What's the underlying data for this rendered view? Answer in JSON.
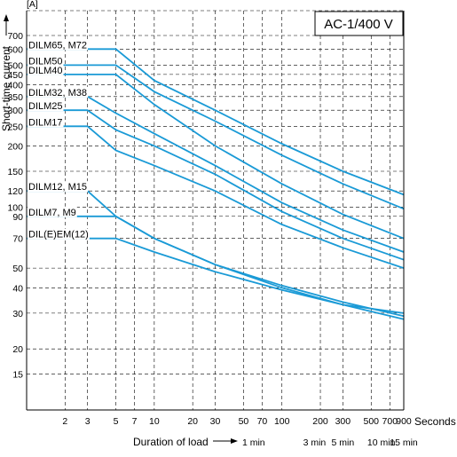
{
  "chart_data": {
    "type": "line",
    "title": "AC-1/400 V",
    "ylabel": "Short-time current",
    "yunit": "[A]",
    "xlabel": "Duration of load",
    "xunit": "Seconds",
    "x_scale": "log",
    "y_scale": "log",
    "xlim": [
      1,
      900
    ],
    "ylim": [
      10,
      700
    ],
    "grid": true,
    "line_color": "#1a9ad6",
    "y_ticks": [
      15,
      20,
      30,
      40,
      50,
      70,
      90,
      100,
      120,
      150,
      200,
      250,
      300,
      350,
      400,
      450,
      500,
      600,
      700
    ],
    "x_ticks": [
      2,
      3,
      5,
      7,
      10,
      20,
      30,
      50,
      70,
      100,
      200,
      300,
      500,
      700,
      900
    ],
    "time_labels": [
      {
        "x": 60,
        "label": "1 min"
      },
      {
        "x": 180,
        "label": "3 min"
      },
      {
        "x": 300,
        "label": "5 min"
      },
      {
        "x": 600,
        "label": "10 min"
      },
      {
        "x": 900,
        "label": "15 min"
      }
    ],
    "series": [
      {
        "name": "DILM65, M72",
        "x": [
          1,
          5,
          10,
          30,
          100,
          300,
          900
        ],
        "y": [
          600,
          600,
          420,
          300,
          205,
          150,
          115
        ]
      },
      {
        "name": "DILM50",
        "x": [
          1,
          5,
          10,
          30,
          100,
          300,
          900
        ],
        "y": [
          500,
          500,
          370,
          265,
          180,
          130,
          98
        ]
      },
      {
        "name": "DILM40",
        "x": [
          1,
          5,
          10,
          30,
          100,
          300,
          900
        ],
        "y": [
          450,
          450,
          320,
          200,
          130,
          92,
          70
        ]
      },
      {
        "name": "DILM32, M38",
        "x": [
          1,
          3,
          5,
          10,
          30,
          100,
          300,
          900
        ],
        "y": [
          350,
          350,
          290,
          230,
          160,
          105,
          77,
          60
        ]
      },
      {
        "name": "DILM25",
        "x": [
          1,
          3,
          5,
          10,
          30,
          100,
          300,
          900
        ],
        "y": [
          300,
          300,
          240,
          200,
          145,
          95,
          70,
          55
        ]
      },
      {
        "name": "DILM17",
        "x": [
          1,
          3,
          5,
          10,
          30,
          100,
          300,
          900
        ],
        "y": [
          250,
          250,
          190,
          160,
          120,
          82,
          63,
          50
        ]
      },
      {
        "name": "DILM12, M15",
        "x": [
          1,
          3,
          5,
          10,
          30,
          100,
          300,
          900
        ],
        "y": [
          120,
          120,
          90,
          70,
          52,
          40,
          33,
          28
        ]
      },
      {
        "name": "DILM7, M9",
        "x": [
          1,
          3,
          5,
          10,
          30,
          100,
          300,
          900
        ],
        "y": [
          90,
          90,
          90,
          70,
          52,
          41,
          34,
          29
        ]
      },
      {
        "name": "DIL(E)EM(12)",
        "x": [
          1,
          5,
          10,
          30,
          100,
          300,
          900
        ],
        "y": [
          70,
          70,
          60,
          48,
          39,
          33,
          30
        ]
      }
    ]
  }
}
